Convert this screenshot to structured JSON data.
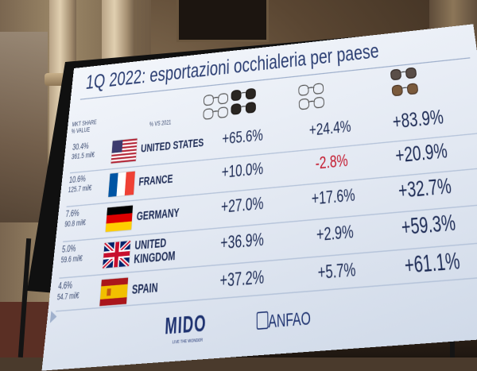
{
  "slide": {
    "title": "1Q 2022: esportazioni occhialeria per paese",
    "header_share": "MKT SHARE % VALUE",
    "header_change": "% VS 2021",
    "columns": [
      {
        "icon": "sunglasses-and-frames-icon"
      },
      {
        "icon": "optical-frames-icon"
      },
      {
        "icon": "sunglasses-icon"
      }
    ],
    "rows": [
      {
        "share": "30.4%",
        "volume": "361.5 mil€",
        "flag": "flag-us-icon",
        "country": "UNITED STATES",
        "v1": "+65.6%",
        "v2": "+24.4%",
        "v3": "+83.9%"
      },
      {
        "share": "10.6%",
        "volume": "125.7 mil€",
        "flag": "flag-fr-icon",
        "country": "FRANCE",
        "v1": "+10.0%",
        "v2": "-2.8%",
        "v3": "+20.9%"
      },
      {
        "share": "7.6%",
        "volume": "90.8 mil€",
        "flag": "flag-de-icon",
        "country": "GERMANY",
        "v1": "+27.0%",
        "v2": "+17.6%",
        "v3": "+32.7%"
      },
      {
        "share": "5.0%",
        "volume": "59.6 mil€",
        "flag": "flag-uk-icon",
        "country": "UNITED KINGDOM",
        "country_line1": "UNITED",
        "country_line2": "KINGDOM",
        "v1": "+36.9%",
        "v2": "+2.9%",
        "v3": "+59.3%"
      },
      {
        "share": "4.6%",
        "volume": "54.7 mil€",
        "flag": "flag-es-icon",
        "country": "SPAIN",
        "v1": "+37.2%",
        "v2": "+5.7%",
        "v3": "+61.1%"
      }
    ],
    "logos": {
      "mido": "MIDO",
      "mido_tagline": "LIVE THE WONDER",
      "anfao": "ANFAO"
    },
    "colors": {
      "title": "#2a3d72",
      "negative": "#c3162b",
      "text": "#1c2a54"
    }
  }
}
